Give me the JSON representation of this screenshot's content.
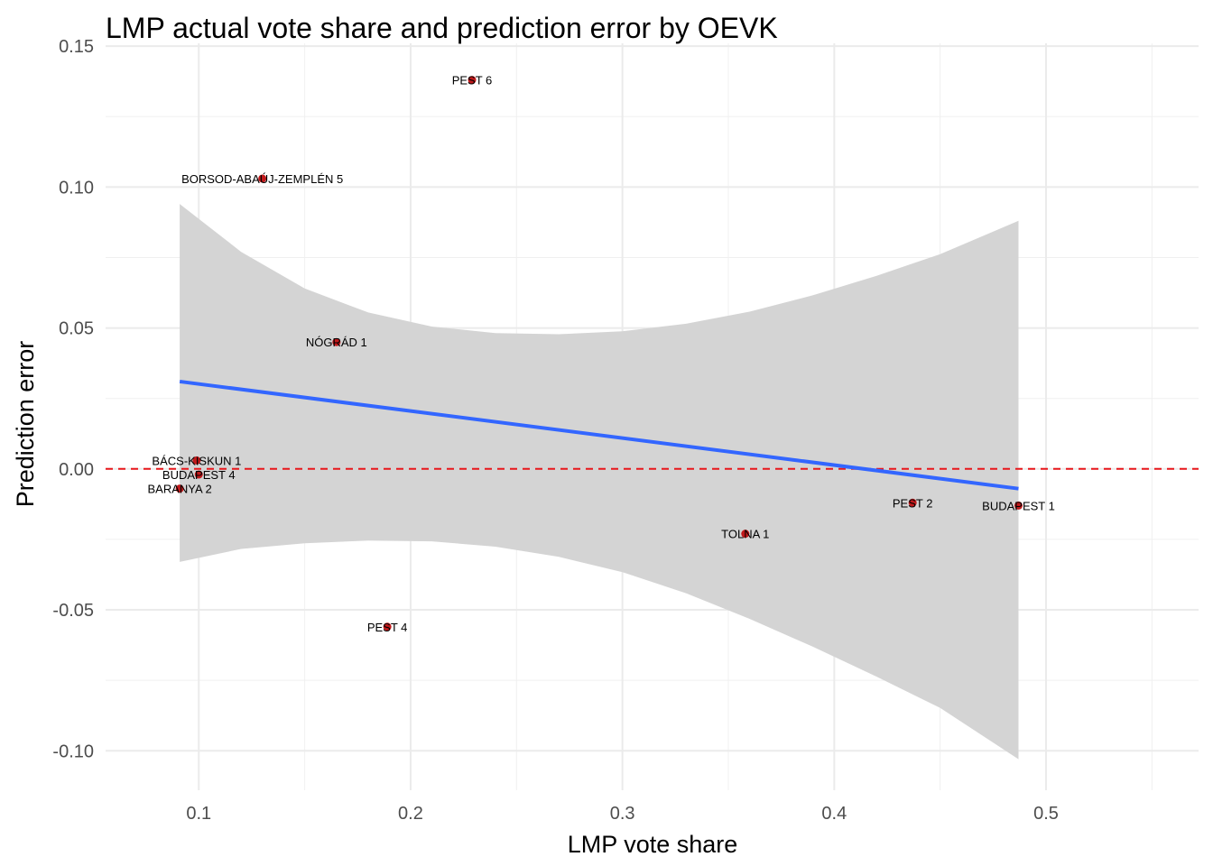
{
  "chart_data": {
    "type": "scatter",
    "title": "LMP actual vote share and prediction error by OEVK",
    "xlabel": "LMP vote share",
    "ylabel": "Prediction error",
    "xlim": [
      0.056,
      0.572
    ],
    "ylim": [
      -0.114,
      0.151
    ],
    "x_ticks": [
      0.1,
      0.2,
      0.3,
      0.4,
      0.5
    ],
    "x_tick_labels": [
      "0.1",
      "0.2",
      "0.3",
      "0.4",
      "0.5"
    ],
    "y_ticks": [
      -0.1,
      -0.05,
      0.0,
      0.05,
      0.1,
      0.15
    ],
    "y_tick_labels": [
      "-0.10",
      "-0.05",
      "0.00",
      "0.05",
      "0.10",
      "0.15"
    ],
    "grid": true,
    "reference_line": {
      "y": 0,
      "style": "dashed",
      "color": "#e8161b"
    },
    "points": [
      {
        "label": "PEST 6",
        "x": 0.229,
        "y": 0.138
      },
      {
        "label": "BORSOD-ABAÚJ-ZEMPLÉN 5",
        "x": 0.13,
        "y": 0.103
      },
      {
        "label": "NÓGRÁD 1",
        "x": 0.165,
        "y": 0.045
      },
      {
        "label": "BÁCS-KISKUN 1",
        "x": 0.099,
        "y": 0.003
      },
      {
        "label": "BUDAPEST 4",
        "x": 0.1,
        "y": -0.002
      },
      {
        "label": "BARANYA 2",
        "x": 0.091,
        "y": -0.007
      },
      {
        "label": "PEST 2",
        "x": 0.437,
        "y": -0.012
      },
      {
        "label": "BUDAPEST 1",
        "x": 0.487,
        "y": -0.013
      },
      {
        "label": "TOLNA 1",
        "x": 0.358,
        "y": -0.023
      },
      {
        "label": "PEST 4",
        "x": 0.189,
        "y": -0.056
      }
    ],
    "trend_line": {
      "x": [
        0.091,
        0.487
      ],
      "y": [
        0.031,
        -0.007
      ],
      "color": "#3366ff"
    },
    "confidence_band": {
      "color": "#d4d4d4",
      "x": [
        0.091,
        0.12,
        0.15,
        0.18,
        0.21,
        0.24,
        0.27,
        0.3,
        0.33,
        0.36,
        0.39,
        0.42,
        0.45,
        0.487
      ],
      "upper": [
        0.094,
        0.077,
        0.064,
        0.0555,
        0.0505,
        0.0482,
        0.0478,
        0.0488,
        0.0515,
        0.0558,
        0.0616,
        0.0685,
        0.0762,
        0.088
      ],
      "lower": [
        -0.033,
        -0.0284,
        -0.0264,
        -0.0254,
        -0.0257,
        -0.0276,
        -0.0312,
        -0.0366,
        -0.0441,
        -0.0532,
        -0.0631,
        -0.0737,
        -0.0848,
        -0.103
      ]
    },
    "point_color": "#c0191b"
  }
}
